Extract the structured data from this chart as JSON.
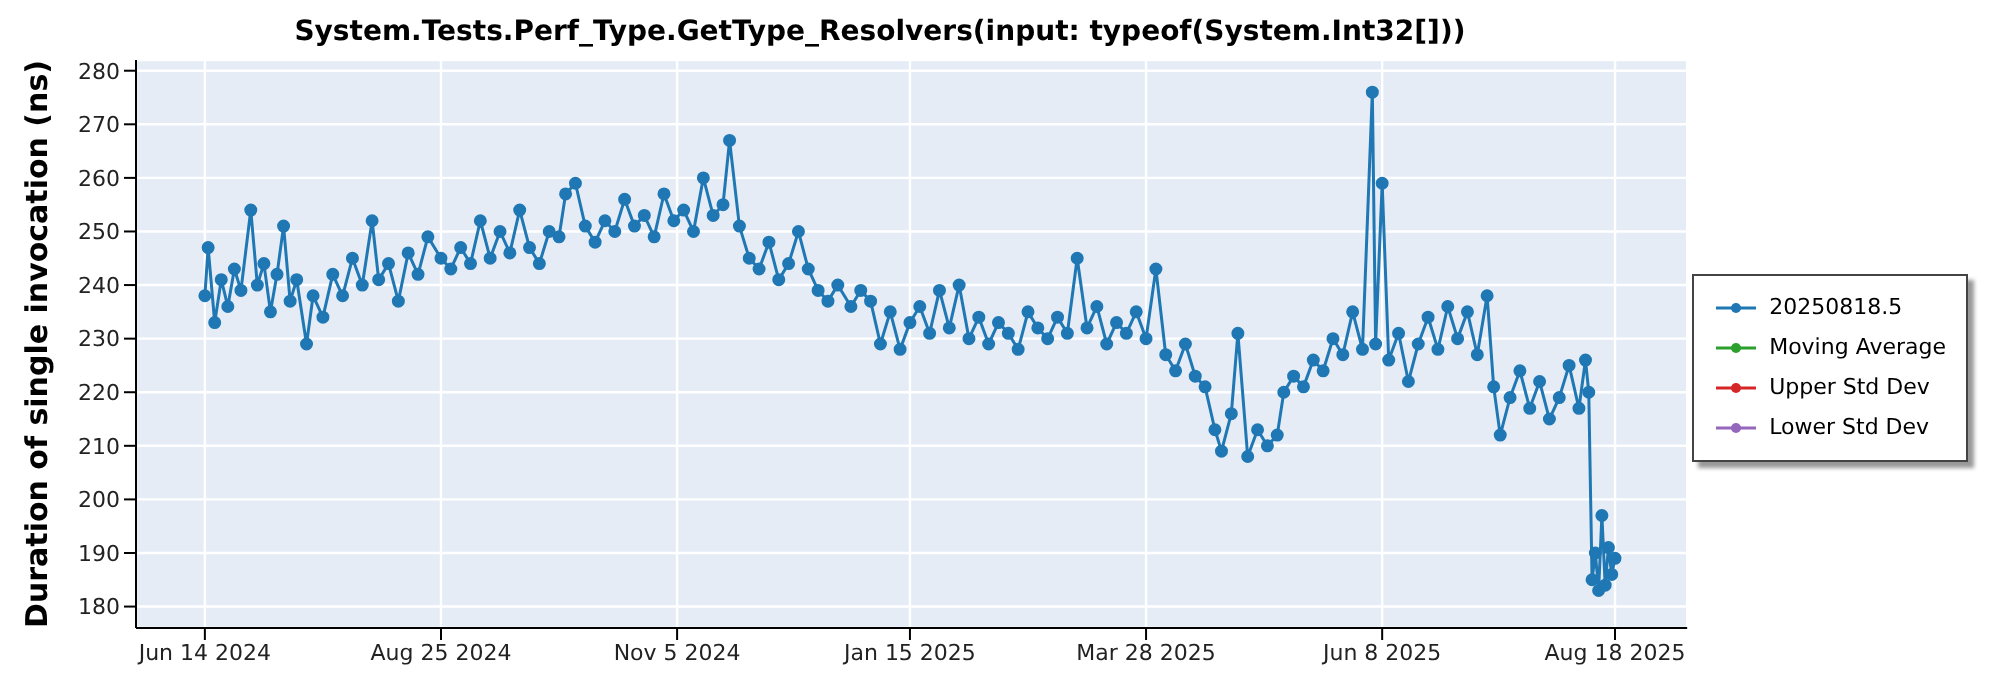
{
  "chart_data": {
    "type": "line",
    "title": "System.Tests.Perf_Type.GetType_Resolvers(input: typeof(System.Int32[]))",
    "ylabel": "Duration of single invocation (ns)",
    "xlim": [
      "2024-05-24",
      "2025-09-09"
    ],
    "xticks": [
      {
        "value": "2024-06-14",
        "label": "Jun 14 2024"
      },
      {
        "value": "2024-08-25",
        "label": "Aug 25 2024"
      },
      {
        "value": "2024-11-05",
        "label": "Nov 5 2024"
      },
      {
        "value": "2025-01-15",
        "label": "Jan 15 2025"
      },
      {
        "value": "2025-03-28",
        "label": "Mar 28 2025"
      },
      {
        "value": "2025-06-08",
        "label": "Jun 8 2025"
      },
      {
        "value": "2025-08-18",
        "label": "Aug 18 2025"
      }
    ],
    "ylim": [
      176,
      282
    ],
    "yticks": [
      180,
      190,
      200,
      210,
      220,
      230,
      240,
      250,
      260,
      270,
      280
    ],
    "grid": true,
    "legend": "right",
    "marker": "circle",
    "line_style": "solid",
    "series": [
      {
        "name": "20250818.5",
        "color": "#1f77b4",
        "x": [
          "2024-06-14",
          "2024-06-15",
          "2024-06-17",
          "2024-06-19",
          "2024-06-21",
          "2024-06-23",
          "2024-06-25",
          "2024-06-28",
          "2024-06-30",
          "2024-07-02",
          "2024-07-04",
          "2024-07-06",
          "2024-07-08",
          "2024-07-10",
          "2024-07-12",
          "2024-07-15",
          "2024-07-17",
          "2024-07-20",
          "2024-07-23",
          "2024-07-26",
          "2024-07-29",
          "2024-08-01",
          "2024-08-04",
          "2024-08-06",
          "2024-08-09",
          "2024-08-12",
          "2024-08-15",
          "2024-08-18",
          "2024-08-21",
          "2024-08-25",
          "2024-08-28",
          "2024-08-31",
          "2024-09-03",
          "2024-09-06",
          "2024-09-09",
          "2024-09-12",
          "2024-09-15",
          "2024-09-18",
          "2024-09-21",
          "2024-09-24",
          "2024-09-27",
          "2024-09-30",
          "2024-10-02",
          "2024-10-05",
          "2024-10-08",
          "2024-10-11",
          "2024-10-14",
          "2024-10-17",
          "2024-10-20",
          "2024-10-23",
          "2024-10-26",
          "2024-10-29",
          "2024-11-01",
          "2024-11-04",
          "2024-11-07",
          "2024-11-10",
          "2024-11-13",
          "2024-11-16",
          "2024-11-19",
          "2024-11-21",
          "2024-11-24",
          "2024-11-27",
          "2024-11-30",
          "2024-12-03",
          "2024-12-06",
          "2024-12-09",
          "2024-12-12",
          "2024-12-15",
          "2024-12-18",
          "2024-12-21",
          "2024-12-24",
          "2024-12-28",
          "2024-12-31",
          "2025-01-03",
          "2025-01-06",
          "2025-01-09",
          "2025-01-12",
          "2025-01-15",
          "2025-01-18",
          "2025-01-21",
          "2025-01-24",
          "2025-01-27",
          "2025-01-30",
          "2025-02-02",
          "2025-02-05",
          "2025-02-08",
          "2025-02-11",
          "2025-02-14",
          "2025-02-17",
          "2025-02-20",
          "2025-02-23",
          "2025-02-26",
          "2025-03-01",
          "2025-03-04",
          "2025-03-07",
          "2025-03-10",
          "2025-03-13",
          "2025-03-16",
          "2025-03-19",
          "2025-03-22",
          "2025-03-25",
          "2025-03-28",
          "2025-03-31",
          "2025-04-03",
          "2025-04-06",
          "2025-04-09",
          "2025-04-12",
          "2025-04-15",
          "2025-04-18",
          "2025-04-20",
          "2025-04-23",
          "2025-04-25",
          "2025-04-28",
          "2025-05-01",
          "2025-05-04",
          "2025-05-07",
          "2025-05-09",
          "2025-05-12",
          "2025-05-15",
          "2025-05-18",
          "2025-05-21",
          "2025-05-24",
          "2025-05-27",
          "2025-05-30",
          "2025-06-02",
          "2025-06-05",
          "2025-06-06",
          "2025-06-08",
          "2025-06-10",
          "2025-06-13",
          "2025-06-16",
          "2025-06-19",
          "2025-06-22",
          "2025-06-25",
          "2025-06-28",
          "2025-07-01",
          "2025-07-04",
          "2025-07-07",
          "2025-07-10",
          "2025-07-12",
          "2025-07-14",
          "2025-07-17",
          "2025-07-20",
          "2025-07-23",
          "2025-07-26",
          "2025-07-29",
          "2025-08-01",
          "2025-08-04",
          "2025-08-07",
          "2025-08-09",
          "2025-08-10",
          "2025-08-11",
          "2025-08-12",
          "2025-08-13",
          "2025-08-14",
          "2025-08-15",
          "2025-08-16",
          "2025-08-17",
          "2025-08-18"
        ],
        "values": [
          238,
          247,
          233,
          241,
          236,
          243,
          239,
          254,
          240,
          244,
          235,
          242,
          251,
          237,
          241,
          229,
          238,
          234,
          242,
          238,
          245,
          240,
          252,
          241,
          244,
          237,
          246,
          242,
          249,
          245,
          243,
          247,
          244,
          252,
          245,
          250,
          246,
          254,
          247,
          244,
          250,
          249,
          257,
          259,
          251,
          248,
          252,
          250,
          256,
          251,
          253,
          249,
          257,
          252,
          254,
          250,
          260,
          253,
          255,
          267,
          251,
          245,
          243,
          248,
          241,
          244,
          250,
          243,
          239,
          237,
          240,
          236,
          239,
          237,
          229,
          235,
          228,
          233,
          236,
          231,
          239,
          232,
          240,
          230,
          234,
          229,
          233,
          231,
          228,
          235,
          232,
          230,
          234,
          231,
          245,
          232,
          236,
          229,
          233,
          231,
          235,
          230,
          243,
          227,
          224,
          229,
          223,
          221,
          213,
          209,
          216,
          231,
          208,
          213,
          210,
          212,
          220,
          223,
          221,
          226,
          224,
          230,
          227,
          235,
          228,
          276,
          229,
          259,
          226,
          231,
          222,
          229,
          234,
          228,
          236,
          230,
          235,
          227,
          238,
          221,
          212,
          219,
          224,
          217,
          222,
          215,
          219,
          225,
          217,
          226,
          220,
          185,
          190,
          183,
          197,
          184,
          191,
          186,
          189
        ]
      },
      {
        "name": "Moving Average",
        "color": "#2ca02c"
      },
      {
        "name": "Upper Std Dev",
        "color": "#d62728"
      },
      {
        "name": "Lower Std Dev",
        "color": "#9467bd"
      }
    ]
  }
}
